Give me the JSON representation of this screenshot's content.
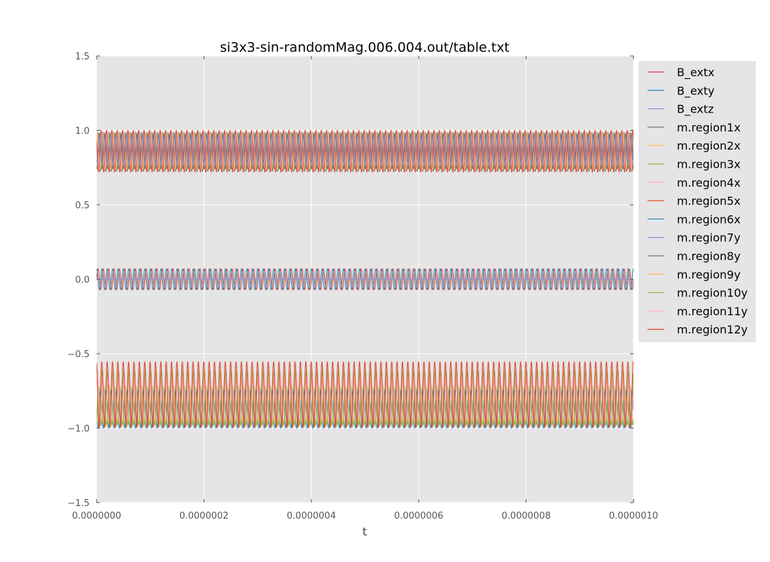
{
  "chart_data": {
    "type": "line",
    "title": "si3x3-sin-randomMag.006.004.out/table.txt",
    "xlabel": "t",
    "ylabel": "",
    "xlim": [
      0,
      1e-06
    ],
    "ylim": [
      -1.5,
      1.5
    ],
    "grid": true,
    "legend_placement": "outside-right-top",
    "x_ticks": [
      {
        "value": 0,
        "label": "0.0000000"
      },
      {
        "value": 2e-07,
        "label": "0.0000002"
      },
      {
        "value": 4e-07,
        "label": "0.0000004"
      },
      {
        "value": 6e-07,
        "label": "0.0000006"
      },
      {
        "value": 8e-07,
        "label": "0.0000008"
      },
      {
        "value": 1e-06,
        "label": "0.0000010"
      }
    ],
    "y_ticks": [
      {
        "value": 1.5,
        "label": "1.5"
      },
      {
        "value": 1.0,
        "label": "1.0"
      },
      {
        "value": 0.5,
        "label": "0.5"
      },
      {
        "value": 0.0,
        "label": "0.0"
      },
      {
        "value": -0.5,
        "label": "−0.5"
      },
      {
        "value": -1.0,
        "label": "−1.0"
      },
      {
        "value": -1.5,
        "label": "−1.5"
      }
    ],
    "frequency_hz": 100000000.0,
    "series": [
      {
        "name": "B_extx",
        "color": "#e24a33",
        "offset": 0.0,
        "amplitude": 0.07,
        "phase": 0.0
      },
      {
        "name": "B_exty",
        "color": "#348abd",
        "offset": 0.0,
        "amplitude": 0.07,
        "phase": 1.57
      },
      {
        "name": "B_extz",
        "color": "#988ed5",
        "offset": 0.0,
        "amplitude": 0.0,
        "phase": 0.0
      },
      {
        "name": "m.region1x",
        "color": "#777777",
        "offset": 0.855,
        "amplitude": 0.13,
        "phase": 0.3
      },
      {
        "name": "m.region2x",
        "color": "#fbc15e",
        "offset": 0.86,
        "amplitude": 0.12,
        "phase": 0.8
      },
      {
        "name": "m.region3x",
        "color": "#8eba42",
        "offset": -0.8,
        "amplitude": 0.19,
        "phase": 1.1
      },
      {
        "name": "m.region4x",
        "color": "#ffb5b8",
        "offset": 0.86,
        "amplitude": 0.12,
        "phase": 2.0
      },
      {
        "name": "m.region5x",
        "color": "#e24a33",
        "offset": 0.86,
        "amplitude": 0.14,
        "phase": 2.6
      },
      {
        "name": "m.region6x",
        "color": "#348abd",
        "offset": -0.87,
        "amplitude": 0.13,
        "phase": 3.2
      },
      {
        "name": "m.region7y",
        "color": "#988ed5",
        "offset": 0.88,
        "amplitude": 0.1,
        "phase": 4.0
      },
      {
        "name": "m.region8y",
        "color": "#777777",
        "offset": 0.86,
        "amplitude": 0.12,
        "phase": 4.6
      },
      {
        "name": "m.region9y",
        "color": "#fbc15e",
        "offset": -0.87,
        "amplitude": 0.1,
        "phase": 5.0
      },
      {
        "name": "m.region10y",
        "color": "#8eba42",
        "offset": -0.85,
        "amplitude": 0.13,
        "phase": 5.5
      },
      {
        "name": "m.region11y",
        "color": "#ffb5b8",
        "offset": -0.8,
        "amplitude": 0.15,
        "phase": 0.6
      },
      {
        "name": "m.region12y",
        "color": "#e24a33",
        "offset": -0.775,
        "amplitude": 0.22,
        "phase": 1.8
      }
    ]
  }
}
